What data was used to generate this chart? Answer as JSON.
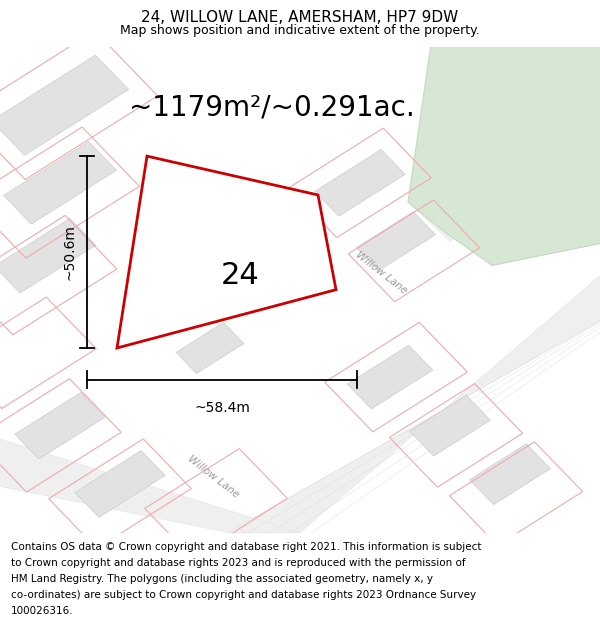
{
  "title": "24, WILLOW LANE, AMERSHAM, HP7 9DW",
  "subtitle": "Map shows position and indicative extent of the property.",
  "area_text": "~1179m²/~0.291ac.",
  "label_24": "24",
  "dim_height": "~50.6m",
  "dim_width": "~58.4m",
  "road_label": "Willow Lane",
  "footer_lines": [
    "Contains OS data © Crown copyright and database right 2021. This information is subject",
    "to Crown copyright and database rights 2023 and is reproduced with the permission of",
    "HM Land Registry. The polygons (including the associated geometry, namely x, y",
    "co-ordinates) are subject to Crown copyright and database rights 2023 Ordnance Survey",
    "100026316."
  ],
  "bg_color": "#f7f7f7",
  "road_color": "#efefef",
  "road_edge": "#e0e0e0",
  "building_fill": "#e2e2e2",
  "building_edge": "#cccccc",
  "green_fill": "#d6e8d4",
  "green_edge": "#c4d8c2",
  "property_edge": "#cc0000",
  "pink_line": "#f0aaaa",
  "dim_color": "#000000",
  "title_fontsize": 11,
  "subtitle_fontsize": 9,
  "area_fontsize": 20,
  "label_fontsize": 22,
  "dim_fontsize": 10,
  "road_label_fontsize": 7.5,
  "footer_fontsize": 7.5
}
